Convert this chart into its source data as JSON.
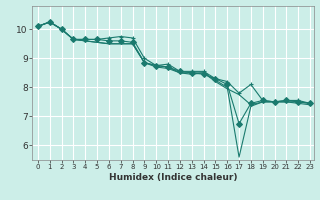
{
  "xlabel": "Humidex (Indice chaleur)",
  "background_color": "#cceee8",
  "grid_color": "#ffffff",
  "line_color": "#1a7a6e",
  "xlim": [
    -0.5,
    23.3
  ],
  "ylim": [
    5.5,
    10.8
  ],
  "yticks": [
    6,
    7,
    8,
    9,
    10
  ],
  "xticks": [
    0,
    1,
    2,
    3,
    4,
    5,
    6,
    7,
    8,
    9,
    10,
    11,
    12,
    13,
    14,
    15,
    16,
    17,
    18,
    19,
    20,
    21,
    22,
    23
  ],
  "series": [
    {
      "x": [
        0,
        1,
        2,
        3,
        4,
        5,
        6,
        7,
        8,
        9,
        10,
        11,
        12,
        13,
        14,
        15,
        16,
        17,
        18,
        19,
        20,
        21,
        22,
        23
      ],
      "y": [
        10.1,
        10.25,
        10.0,
        9.65,
        9.65,
        9.65,
        9.7,
        9.75,
        9.7,
        9.0,
        8.75,
        8.8,
        8.55,
        8.55,
        8.55,
        8.3,
        8.2,
        7.8,
        8.1,
        7.55,
        7.5,
        7.55,
        7.55,
        7.45
      ],
      "marker": "+"
    },
    {
      "x": [
        0,
        1,
        2,
        3,
        4,
        5,
        6,
        7,
        8,
        9,
        10,
        11,
        12,
        13,
        14,
        15,
        16,
        17,
        18,
        19,
        20,
        21,
        22,
        23
      ],
      "y": [
        10.1,
        10.25,
        10.0,
        9.65,
        9.65,
        9.65,
        9.6,
        9.6,
        9.55,
        8.85,
        8.75,
        8.7,
        8.55,
        8.5,
        8.45,
        8.3,
        8.1,
        6.75,
        7.45,
        7.55,
        7.5,
        7.55,
        7.5,
        7.45
      ],
      "marker": "D"
    },
    {
      "x": [
        0,
        1,
        2,
        3,
        4,
        5,
        6,
        7,
        8,
        9,
        10,
        11,
        12,
        13,
        14,
        15,
        16,
        17,
        18,
        19,
        20,
        21,
        22,
        23
      ],
      "y": [
        10.1,
        10.25,
        10.0,
        9.65,
        9.6,
        9.55,
        9.5,
        9.5,
        9.5,
        8.85,
        8.75,
        8.7,
        8.5,
        8.5,
        8.5,
        8.25,
        8.0,
        5.6,
        7.35,
        7.5,
        7.5,
        7.5,
        7.5,
        7.45
      ],
      "marker": null
    },
    {
      "x": [
        0,
        1,
        2,
        3,
        4,
        5,
        6,
        7,
        8,
        9,
        10,
        11,
        12,
        13,
        14,
        15,
        16,
        17,
        18,
        19,
        20,
        21,
        22,
        23
      ],
      "y": [
        10.1,
        10.25,
        10.0,
        9.65,
        9.6,
        9.55,
        9.5,
        9.5,
        9.5,
        8.85,
        8.7,
        8.65,
        8.5,
        8.45,
        8.5,
        8.2,
        7.95,
        7.75,
        7.4,
        7.5,
        7.5,
        7.5,
        7.45,
        7.4
      ],
      "marker": null
    }
  ]
}
